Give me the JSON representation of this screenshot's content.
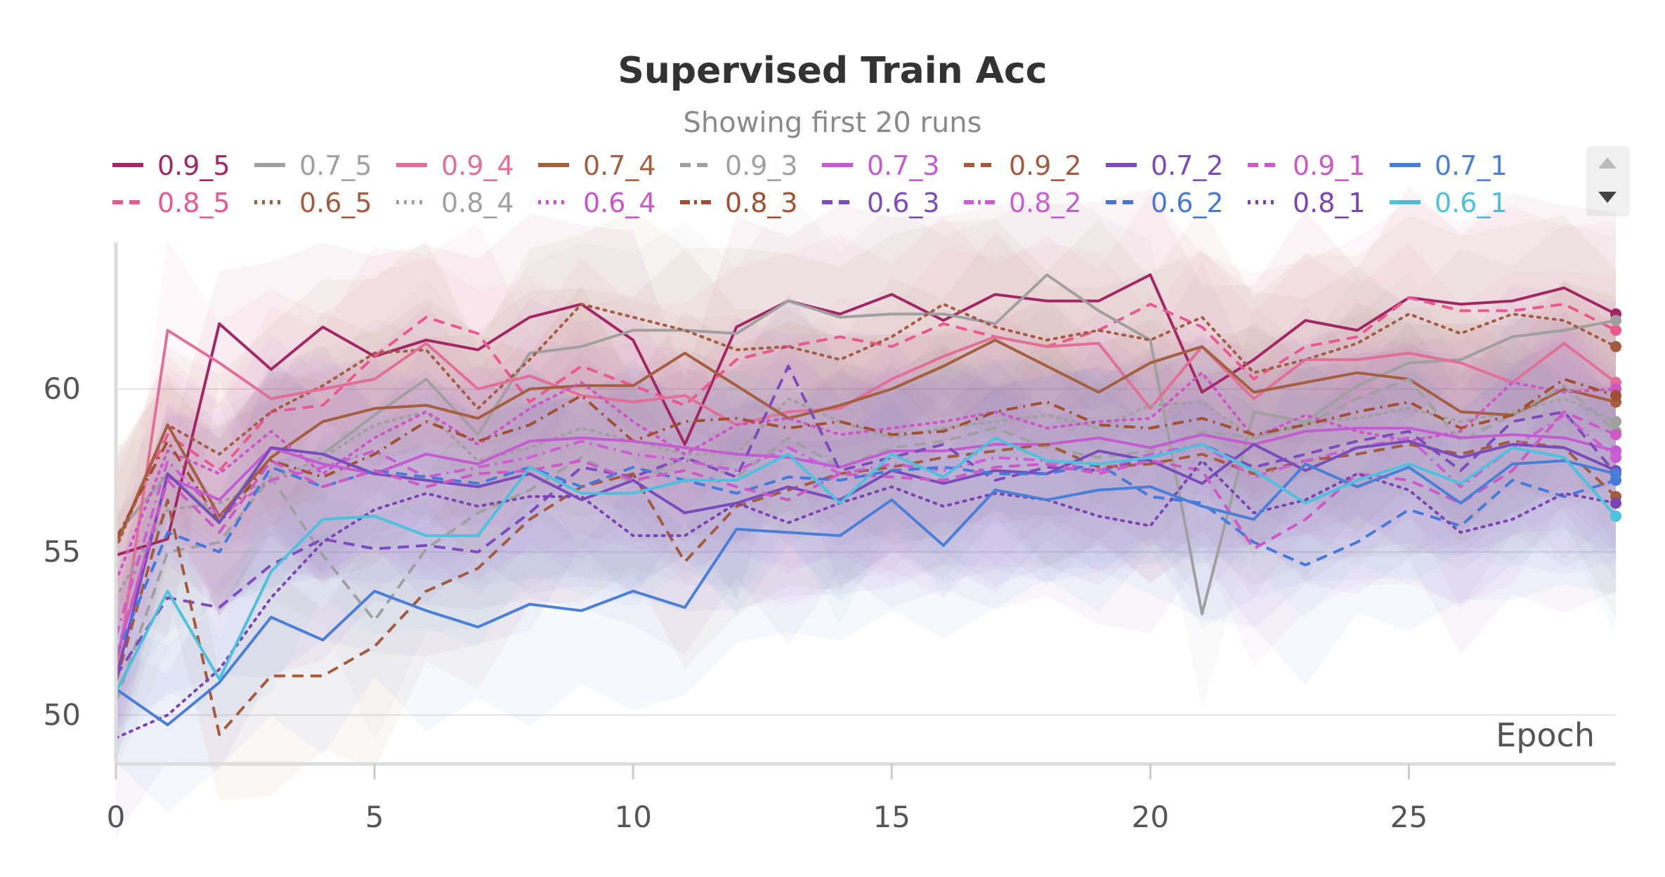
{
  "chart_data": {
    "type": "line",
    "title": "Supervised Train Acc",
    "subtitle": "Showing first 20 runs",
    "xlabel": "Epoch",
    "ylabel": "",
    "xlim": [
      0,
      29
    ],
    "ylim": [
      48.5,
      64.5
    ],
    "x_ticks": [
      0,
      5,
      10,
      15,
      20,
      25
    ],
    "y_ticks": [
      50,
      55,
      60
    ],
    "grid": true,
    "legend_position": "top",
    "shaded_bands": true,
    "x": [
      0,
      1,
      2,
      3,
      4,
      5,
      6,
      7,
      8,
      9,
      10,
      11,
      12,
      13,
      14,
      15,
      16,
      17,
      18,
      19,
      20,
      21,
      22,
      23,
      24,
      25,
      26,
      27,
      28,
      29
    ],
    "series": [
      {
        "name": "0.9_5",
        "color": "#a12864",
        "dash": "solid",
        "values": [
          54.9,
          55.4,
          62.0,
          60.6,
          61.9,
          61.0,
          61.5,
          61.2,
          62.2,
          62.6,
          61.5,
          58.3,
          61.9,
          62.7,
          62.3,
          62.9,
          62.1,
          62.9,
          62.7,
          62.7,
          63.5,
          59.9,
          60.9,
          62.1,
          61.8,
          62.8,
          62.6,
          62.7,
          63.1,
          62.3
        ]
      },
      {
        "name": "0.8_5",
        "color": "#e8598f",
        "dash": "dash",
        "values": [
          55.3,
          58.6,
          57.5,
          59.3,
          59.5,
          61.0,
          62.2,
          61.7,
          59.6,
          60.7,
          60.1,
          59.5,
          60.9,
          61.3,
          61.6,
          61.3,
          62.0,
          61.6,
          61.3,
          61.8,
          62.6,
          61.9,
          60.3,
          61.3,
          61.6,
          62.8,
          62.4,
          62.4,
          62.6,
          61.8
        ]
      },
      {
        "name": "0.7_5",
        "color": "#a0a0a0",
        "dash": "solid",
        "values": [
          55.5,
          57.4,
          56.0,
          58.2,
          58.0,
          59.2,
          60.3,
          58.6,
          61.1,
          61.3,
          61.8,
          61.8,
          61.7,
          62.7,
          62.2,
          62.3,
          62.3,
          62.0,
          63.5,
          62.4,
          61.5,
          53.1,
          59.3,
          59.0,
          60.1,
          60.8,
          60.9,
          61.6,
          61.8,
          62.1
        ]
      },
      {
        "name": "0.6_5",
        "color": "#a25c42",
        "dash": "dot",
        "values": [
          55.1,
          58.9,
          58.0,
          59.3,
          60.1,
          61.1,
          61.2,
          59.4,
          60.9,
          62.6,
          62.2,
          61.8,
          61.2,
          61.3,
          60.9,
          61.6,
          62.6,
          61.9,
          61.5,
          61.8,
          61.5,
          62.2,
          60.5,
          60.9,
          61.4,
          62.3,
          61.7,
          62.3,
          62.1,
          61.3
        ]
      },
      {
        "name": "0.9_4",
        "color": "#e26f97",
        "dash": "solid",
        "values": [
          51.1,
          61.8,
          60.8,
          59.7,
          60.0,
          60.3,
          61.4,
          60.0,
          60.4,
          59.8,
          59.6,
          59.8,
          58.9,
          59.3,
          59.4,
          60.3,
          61.0,
          61.6,
          61.3,
          61.4,
          59.4,
          61.3,
          59.7,
          60.9,
          60.9,
          61.1,
          60.8,
          60.2,
          61.4,
          60.2
        ]
      },
      {
        "name": "0.8_4",
        "color": "#a0a0a0",
        "dash": "dot",
        "values": [
          53.6,
          56.3,
          56.5,
          57.2,
          57.9,
          58.9,
          59.3,
          57.8,
          58.2,
          58.8,
          58.4,
          58.0,
          58.0,
          59.7,
          59.0,
          58.5,
          58.8,
          59.0,
          59.2,
          58.8,
          59.5,
          59.6,
          58.5,
          59.0,
          59.1,
          59.4,
          59.0,
          59.3,
          59.7,
          59.0
        ]
      },
      {
        "name": "0.7_4",
        "color": "#a35f3f",
        "dash": "solid",
        "values": [
          55.2,
          58.9,
          56.1,
          57.9,
          59.0,
          59.4,
          59.5,
          59.1,
          60.0,
          60.1,
          60.1,
          61.1,
          60.1,
          59.1,
          59.5,
          60.0,
          60.7,
          61.5,
          60.7,
          59.9,
          60.8,
          61.3,
          59.9,
          60.2,
          60.5,
          60.3,
          59.3,
          59.2,
          60.0,
          59.6
        ]
      },
      {
        "name": "0.6_4",
        "color": "#cc55c8",
        "dash": "dot",
        "values": [
          54.1,
          58.1,
          57.4,
          58.7,
          57.4,
          58.5,
          59.3,
          58.3,
          59.4,
          60.2,
          59.0,
          58.0,
          58.9,
          59.1,
          58.6,
          58.8,
          59.0,
          59.3,
          58.8,
          59.0,
          59.1,
          60.5,
          58.5,
          59.2,
          58.7,
          58.4,
          58.7,
          60.2,
          59.9,
          60.0
        ]
      },
      {
        "name": "0.9_3",
        "color": "#a0a0a0",
        "dash": "dash",
        "values": [
          50.4,
          55.0,
          55.3,
          57.3,
          54.9,
          52.9,
          55.1,
          56.2,
          56.9,
          57.9,
          57.1,
          57.9,
          57.3,
          58.5,
          57.6,
          58.2,
          58.4,
          58.8,
          58.2,
          57.9,
          58.1,
          58.7,
          58.5,
          58.9,
          59.7,
          60.3,
          58.4,
          59.2,
          60.1,
          58.7
        ]
      },
      {
        "name": "0.8_3",
        "color": "#a05030",
        "dash": "dashdot",
        "values": [
          55.4,
          58.4,
          55.9,
          57.8,
          57.3,
          58.0,
          59.0,
          58.4,
          58.9,
          59.8,
          58.4,
          59.0,
          59.1,
          58.8,
          59.0,
          58.6,
          58.7,
          59.3,
          59.6,
          58.9,
          58.8,
          59.1,
          58.6,
          58.9,
          59.3,
          59.6,
          58.8,
          59.2,
          60.3,
          59.8
        ]
      },
      {
        "name": "0.7_3",
        "color": "#c35cd0",
        "dash": "solid",
        "values": [
          51.7,
          57.3,
          56.6,
          58.2,
          57.7,
          57.4,
          58.0,
          57.7,
          58.4,
          58.5,
          58.4,
          58.2,
          58.0,
          57.9,
          57.6,
          58.1,
          58.1,
          58.3,
          58.3,
          58.5,
          58.2,
          58.6,
          58.3,
          58.7,
          58.8,
          58.8,
          58.5,
          58.6,
          58.5,
          58.1
        ]
      },
      {
        "name": "0.6_3",
        "color": "#7e4bbd",
        "dash": "dash",
        "values": [
          51.2,
          53.6,
          53.3,
          54.6,
          55.4,
          55.1,
          55.2,
          55.0,
          56.2,
          57.6,
          57.3,
          57.9,
          57.3,
          60.7,
          57.5,
          57.9,
          58.3,
          57.2,
          57.6,
          57.5,
          57.9,
          58.3,
          57.6,
          58.0,
          58.4,
          58.7,
          57.5,
          59.0,
          59.3,
          57.4
        ]
      },
      {
        "name": "0.9_2",
        "color": "#a35a3e",
        "dash": "dash",
        "values": [
          51.0,
          56.6,
          49.4,
          51.2,
          51.2,
          52.1,
          53.8,
          54.5,
          56.0,
          57.0,
          57.4,
          54.7,
          56.4,
          56.9,
          57.4,
          57.6,
          57.9,
          58.1,
          58.3,
          57.6,
          57.7,
          58.0,
          57.4,
          57.8,
          58.0,
          58.3,
          58.0,
          58.4,
          58.2,
          56.7
        ]
      },
      {
        "name": "0.8_2",
        "color": "#cc5ed2",
        "dash": "dashdot",
        "values": [
          52.4,
          57.8,
          56.1,
          57.2,
          57.6,
          58.1,
          57.3,
          57.6,
          57.9,
          58.4,
          58.0,
          57.8,
          57.5,
          58.2,
          57.4,
          57.7,
          57.5,
          57.9,
          57.8,
          57.5,
          58.0,
          58.3,
          57.3,
          57.8,
          58.2,
          58.5,
          57.0,
          58.2,
          59.2,
          57.9
        ]
      },
      {
        "name": "0.7_2",
        "color": "#7a4cbb",
        "dash": "solid",
        "values": [
          51.1,
          57.4,
          55.9,
          58.2,
          58.0,
          57.4,
          57.2,
          57.0,
          57.4,
          56.6,
          57.2,
          56.2,
          56.5,
          57.0,
          56.6,
          57.5,
          57.1,
          57.5,
          57.4,
          58.1,
          57.8,
          57.1,
          58.3,
          57.5,
          58.2,
          58.4,
          57.9,
          58.3,
          58.2,
          57.5
        ]
      },
      {
        "name": "0.6_2",
        "color": "#4779d8",
        "dash": "dash",
        "values": [
          51.8,
          55.6,
          55.0,
          57.6,
          57.0,
          57.5,
          57.3,
          57.1,
          57.6,
          57.0,
          57.6,
          57.2,
          56.8,
          57.3,
          57.2,
          57.5,
          57.6,
          57.4,
          57.4,
          57.7,
          56.7,
          56.5,
          55.3,
          54.6,
          55.3,
          56.3,
          55.8,
          57.2,
          56.7,
          57.2
        ]
      },
      {
        "name": "0.9_1",
        "color": "#cd59c5",
        "dash": "dash",
        "values": [
          51.8,
          57.2,
          55.6,
          57.8,
          57.0,
          57.5,
          57.0,
          57.4,
          57.5,
          57.8,
          57.2,
          57.5,
          57.0,
          56.6,
          57.4,
          57.3,
          57.2,
          57.6,
          57.7,
          57.4,
          57.8,
          57.5,
          55.1,
          56.0,
          57.4,
          57.2,
          56.5,
          57.5,
          59.3,
          58.6
        ]
      },
      {
        "name": "0.8_1",
        "color": "#7a45b0",
        "dash": "dot",
        "values": [
          49.3,
          50.0,
          51.4,
          53.6,
          55.3,
          56.3,
          56.8,
          56.4,
          56.7,
          56.7,
          55.5,
          55.5,
          56.5,
          55.9,
          56.5,
          57.0,
          56.4,
          56.8,
          56.6,
          56.1,
          55.8,
          57.8,
          56.2,
          56.6,
          57.4,
          56.9,
          55.6,
          56.0,
          56.8,
          56.5
        ]
      },
      {
        "name": "0.7_1",
        "color": "#4a7fd8",
        "dash": "solid",
        "values": [
          50.8,
          49.7,
          51.0,
          53.0,
          52.3,
          53.8,
          53.2,
          52.7,
          53.4,
          53.2,
          53.8,
          53.3,
          55.7,
          55.6,
          55.5,
          56.6,
          55.2,
          56.9,
          56.6,
          56.9,
          57.0,
          56.4,
          56.0,
          57.7,
          57.0,
          57.6,
          56.5,
          57.7,
          57.8,
          57.4
        ]
      },
      {
        "name": "0.6_1",
        "color": "#4ec1dc",
        "dash": "solid",
        "values": [
          50.7,
          53.8,
          51.1,
          54.4,
          56.0,
          56.1,
          55.5,
          55.5,
          57.6,
          56.8,
          56.8,
          57.2,
          57.2,
          58.0,
          56.5,
          58.0,
          57.3,
          58.5,
          57.8,
          57.7,
          57.9,
          58.3,
          57.5,
          56.5,
          57.2,
          57.7,
          57.1,
          58.2,
          57.9,
          56.1
        ]
      }
    ]
  }
}
